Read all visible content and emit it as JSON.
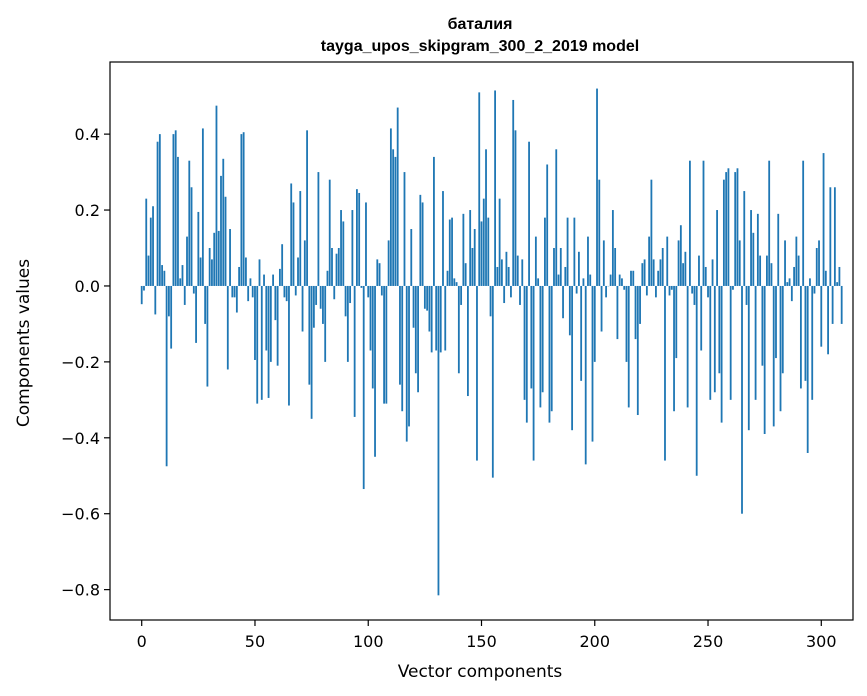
{
  "chart_data": {
    "type": "bar",
    "title": "баталия",
    "subtitle": "tayga_upos_skipgram_300_2_2019 model",
    "xlabel": "Vector components",
    "ylabel": "Components values",
    "xlim": [
      -14,
      314
    ],
    "ylim": [
      -0.88,
      0.59
    ],
    "xticks": [
      0,
      50,
      100,
      150,
      200,
      250,
      300
    ],
    "xtick_labels": [
      "0",
      "50",
      "100",
      "150",
      "200",
      "250",
      "300"
    ],
    "yticks": [
      -0.8,
      -0.6,
      -0.4,
      -0.2,
      0.0,
      0.2,
      0.4
    ],
    "ytick_labels": [
      "−0.8",
      "−0.6",
      "−0.4",
      "−0.2",
      "0.0",
      "0.2",
      "0.4"
    ],
    "bar_color": "#1f77b4",
    "grid": false,
    "legend": "none",
    "x_start": 0,
    "values": [
      -0.048,
      -0.012,
      0.23,
      0.08,
      0.18,
      0.21,
      -0.075,
      0.38,
      0.4,
      0.055,
      0.04,
      -0.475,
      -0.08,
      -0.165,
      0.4,
      0.41,
      0.34,
      0.02,
      0.055,
      -0.05,
      0.13,
      0.33,
      0.26,
      -0.02,
      -0.15,
      0.195,
      0.075,
      0.415,
      -0.1,
      -0.265,
      0.1,
      0.07,
      0.14,
      0.475,
      0.145,
      0.29,
      0.335,
      0.235,
      -0.22,
      0.15,
      -0.03,
      -0.03,
      -0.07,
      0.05,
      0.4,
      0.405,
      0.075,
      -0.04,
      0.02,
      -0.03,
      -0.195,
      -0.31,
      0.07,
      -0.3,
      0.03,
      -0.17,
      -0.295,
      -0.2,
      0.03,
      -0.09,
      -0.21,
      0.045,
      0.11,
      -0.03,
      -0.04,
      -0.315,
      0.27,
      0.22,
      -0.025,
      0.075,
      0.25,
      -0.12,
      0.12,
      0.41,
      -0.26,
      -0.35,
      -0.11,
      -0.05,
      0.3,
      -0.06,
      -0.1,
      -0.2,
      0.04,
      0.28,
      0.1,
      -0.035,
      0.085,
      0.1,
      0.2,
      0.17,
      -0.08,
      -0.2,
      -0.045,
      0.2,
      -0.345,
      0.255,
      0.245,
      -0.005,
      -0.535,
      0.22,
      -0.03,
      -0.17,
      -0.27,
      -0.45,
      0.07,
      0.06,
      -0.025,
      -0.31,
      -0.31,
      0.12,
      0.415,
      0.36,
      0.34,
      0.47,
      -0.26,
      -0.33,
      0.3,
      -0.41,
      -0.37,
      0.15,
      -0.11,
      -0.23,
      -0.28,
      0.24,
      0.22,
      -0.06,
      -0.065,
      -0.12,
      -0.175,
      0.34,
      -0.17,
      -0.815,
      -0.175,
      0.25,
      -0.17,
      0.04,
      0.175,
      0.18,
      0.02,
      0.01,
      -0.23,
      -0.05,
      0.19,
      0.06,
      -0.29,
      0.2,
      0.1,
      0.15,
      -0.46,
      0.51,
      0.17,
      0.23,
      0.36,
      0.18,
      -0.08,
      -0.505,
      0.515,
      0.05,
      0.23,
      0.07,
      -0.045,
      0.09,
      0.05,
      -0.03,
      0.49,
      0.41,
      0.08,
      -0.05,
      0.07,
      -0.3,
      -0.36,
      0.38,
      -0.27,
      -0.46,
      0.13,
      0.02,
      -0.32,
      -0.28,
      0.18,
      0.32,
      -0.36,
      -0.33,
      0.1,
      0.36,
      0.03,
      0.1,
      -0.085,
      0.05,
      0.18,
      -0.13,
      -0.38,
      0.18,
      -0.02,
      0.09,
      -0.25,
      0.02,
      -0.47,
      0.13,
      0.03,
      -0.41,
      -0.2,
      0.52,
      0.28,
      -0.12,
      0.12,
      -0.03,
      0.0,
      0.03,
      0.2,
      0.1,
      -0.14,
      0.03,
      0.02,
      -0.01,
      -0.2,
      -0.32,
      0.04,
      0.04,
      -0.14,
      -0.34,
      -0.1,
      0.06,
      0.07,
      -0.025,
      0.13,
      0.28,
      0.07,
      -0.03,
      0.04,
      0.07,
      0.1,
      -0.46,
      0.13,
      -0.025,
      -0.01,
      -0.33,
      -0.19,
      0.12,
      0.16,
      0.06,
      0.09,
      -0.32,
      0.33,
      -0.02,
      -0.05,
      -0.5,
      0.08,
      -0.17,
      0.33,
      0.05,
      -0.03,
      -0.3,
      0.07,
      -0.28,
      0.2,
      -0.23,
      -0.36,
      0.28,
      0.3,
      0.31,
      -0.3,
      -0.01,
      0.3,
      0.31,
      0.12,
      -0.6,
      0.25,
      -0.05,
      -0.38,
      0.2,
      0.14,
      -0.3,
      0.19,
      0.08,
      -0.21,
      -0.39,
      0.08,
      0.33,
      0.06,
      -0.37,
      -0.19,
      0.19,
      -0.33,
      -0.23,
      0.12,
      0.01,
      0.02,
      -0.04,
      0.05,
      0.13,
      0.08,
      -0.27,
      0.33,
      -0.25,
      -0.44,
      0.02,
      -0.3,
      -0.02,
      0.1,
      0.12,
      -0.16,
      0.35,
      0.04,
      -0.18,
      0.26,
      -0.1,
      0.26,
      0.01,
      0.05,
      -0.1
    ]
  }
}
